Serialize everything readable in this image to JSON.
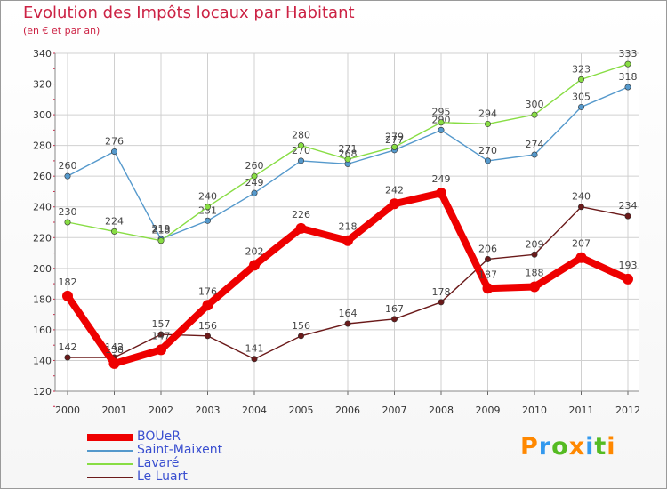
{
  "chart_data": {
    "type": "line",
    "title": "Evolution des Impôts locaux par Habitant",
    "subtitle": "(en € et par an)",
    "xlabel": "",
    "ylabel": "",
    "ylim": [
      120,
      340
    ],
    "yticks": [
      120,
      140,
      160,
      180,
      200,
      220,
      240,
      260,
      280,
      300,
      320,
      340
    ],
    "x": [
      "2000",
      "2001",
      "2002",
      "2003",
      "2004",
      "2005",
      "2006",
      "2007",
      "2008",
      "2009",
      "2010",
      "2011",
      "2012"
    ],
    "series": [
      {
        "name": "BOUeR",
        "color": "#ee0000",
        "values": [
          182,
          138,
          147,
          176,
          202,
          226,
          218,
          242,
          249,
          187,
          188,
          207,
          193
        ]
      },
      {
        "name": "Saint-Maixent",
        "color": "#5599cc",
        "values": [
          260,
          276,
          219,
          231,
          249,
          270,
          268,
          277,
          290,
          270,
          274,
          305,
          318
        ]
      },
      {
        "name": "Lavaré",
        "color": "#88dd44",
        "values": [
          230,
          224,
          218,
          240,
          260,
          280,
          271,
          279,
          295,
          294,
          300,
          323,
          333
        ]
      },
      {
        "name": "Le Luart",
        "color": "#6b1a1a",
        "values": [
          142,
          142,
          157,
          156,
          141,
          156,
          164,
          167,
          178,
          206,
          209,
          240,
          234
        ]
      }
    ]
  },
  "logo": {
    "text": "Proxiti",
    "letters": [
      "P",
      "r",
      "o",
      "x",
      "i",
      "t",
      "i"
    ],
    "colors": [
      "#ff8800",
      "#3399ee",
      "#55bb22",
      "#ff8800",
      "#3399ee",
      "#55bb22",
      "#ff8800"
    ]
  }
}
